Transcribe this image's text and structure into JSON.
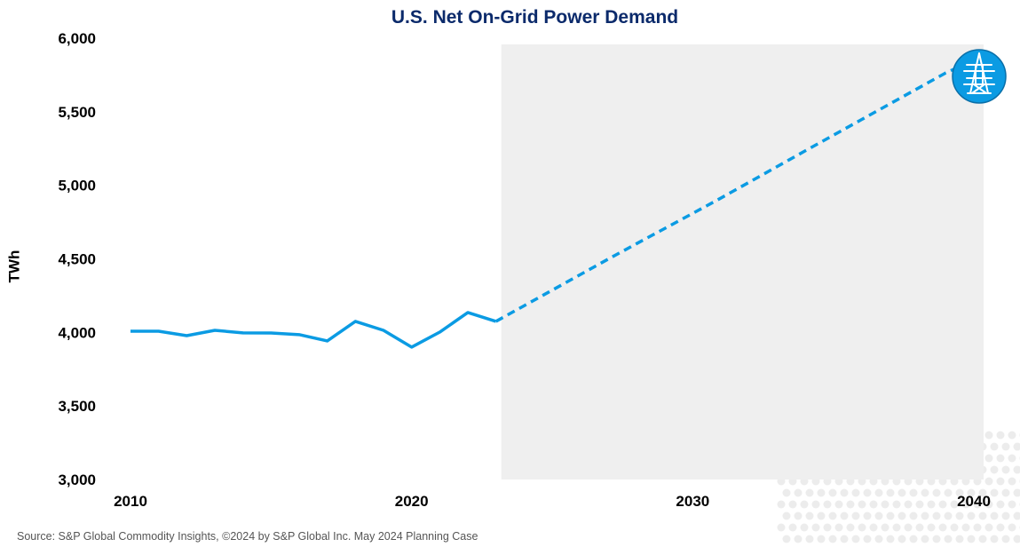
{
  "chart_data": {
    "type": "line",
    "title": "U.S. Net On-Grid Power Demand",
    "xlabel": "",
    "ylabel": "TWh",
    "xlim": [
      2010,
      2040
    ],
    "ylim": [
      3000,
      6000
    ],
    "x_ticks": [
      "2010",
      "2020",
      "2030",
      "2040"
    ],
    "y_ticks": [
      "3,000",
      "3,500",
      "4,000",
      "4,500",
      "5,000",
      "5,500",
      "6,000"
    ],
    "grid": false,
    "forecast_shading": {
      "start": 2023,
      "end": 2040,
      "color": "#efefef"
    },
    "line_color": "#0b9be3",
    "series": [
      {
        "style": "solid",
        "x": [
          2010,
          2011,
          2012,
          2013,
          2014,
          2015,
          2016,
          2017,
          2018,
          2019,
          2020,
          2021,
          2022,
          2023
        ],
        "values": [
          4008,
          4008,
          3978,
          4014,
          3997,
          3996,
          3985,
          3942,
          4075,
          4014,
          3900,
          4002,
          4135,
          4075
        ]
      },
      {
        "style": "dashed",
        "x": [
          2023,
          2024,
          2025,
          2026,
          2027,
          2028,
          2029,
          2030,
          2031,
          2032,
          2033,
          2034,
          2035,
          2036,
          2037,
          2038,
          2039,
          2040
        ],
        "values": [
          4075,
          4181,
          4287,
          4393,
          4499,
          4603,
          4706,
          4809,
          4913,
          5020,
          5127,
          5234,
          5340,
          5446,
          5552,
          5658,
          5764,
          5850
        ]
      }
    ],
    "icon": "transmission-tower-icon"
  },
  "source": "Source: S&P Global Commodity Insights, ©2024 by S&P Global Inc. May 2024 Planning Case"
}
